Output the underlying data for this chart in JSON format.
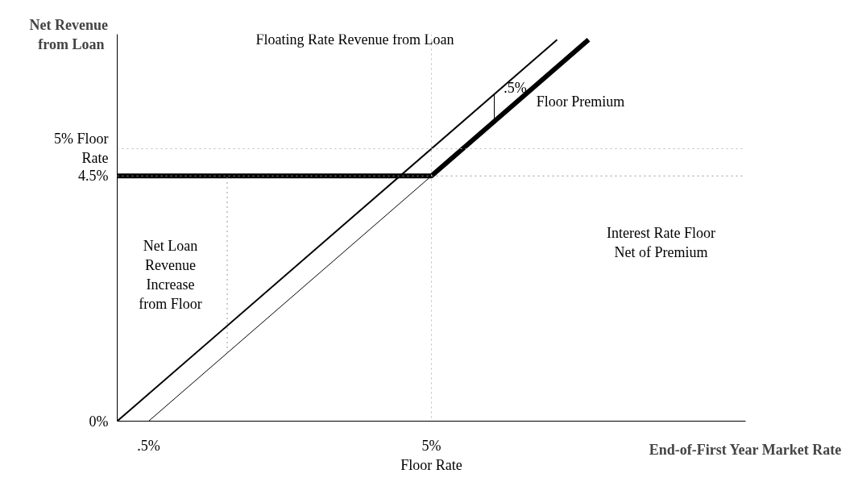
{
  "chart_data": {
    "type": "line",
    "xlabel": "End-of-First Year Market Rate",
    "ylabel": "Net Revenue\nfrom  Loan",
    "xlim": [
      0,
      10
    ],
    "ylim": [
      0,
      7.1
    ],
    "xticks": [
      {
        "value": 0.5,
        "label": ".5%"
      },
      {
        "value": 5,
        "label": "5%\nFloor Rate"
      }
    ],
    "yticks": [
      {
        "value": 0,
        "label": "0%"
      },
      {
        "value": 4.5,
        "label": "4.5%"
      },
      {
        "value": 5,
        "label": "5% Floor\nRate"
      }
    ],
    "grid": false,
    "marker": "none",
    "series": [
      {
        "color": "#000000",
        "x": [
          0,
          5,
          7.5
        ],
        "values": [
          4.5,
          4.5,
          7
        ]
      },
      {
        "color": "#000000",
        "x": [
          0,
          7
        ],
        "values": [
          0,
          7
        ]
      },
      {
        "color": "#000000",
        "x": [
          0.5,
          5
        ],
        "values": [
          0,
          4.5
        ]
      },
      {
        "color": "#000000",
        "x": [
          6,
          6
        ],
        "values": [
          5.5,
          6
        ]
      },
      {
        "color": "#999999",
        "x": [
          1.75,
          1.75
        ],
        "values": [
          1.25,
          4.5
        ],
        "line_style": "dotted"
      }
    ],
    "ref_lines": [
      {
        "axis": "y",
        "value": 4.5,
        "color": "#999999",
        "line_style": "dotted"
      },
      {
        "axis": "y",
        "value": 5,
        "color": "#bbbbbb",
        "line_style": "dotted"
      },
      {
        "axis": "x",
        "value": 5,
        "color": "#bbbbbb",
        "line_style": "dotted"
      }
    ],
    "annotations": [
      "Floating Rate Revenue from Loan",
      ".5%",
      "Floor Premium",
      "Interest Rate Floor\nNet of Premium",
      "Net Loan\nRevenue\nIncrease\nfrom Floor"
    ]
  }
}
